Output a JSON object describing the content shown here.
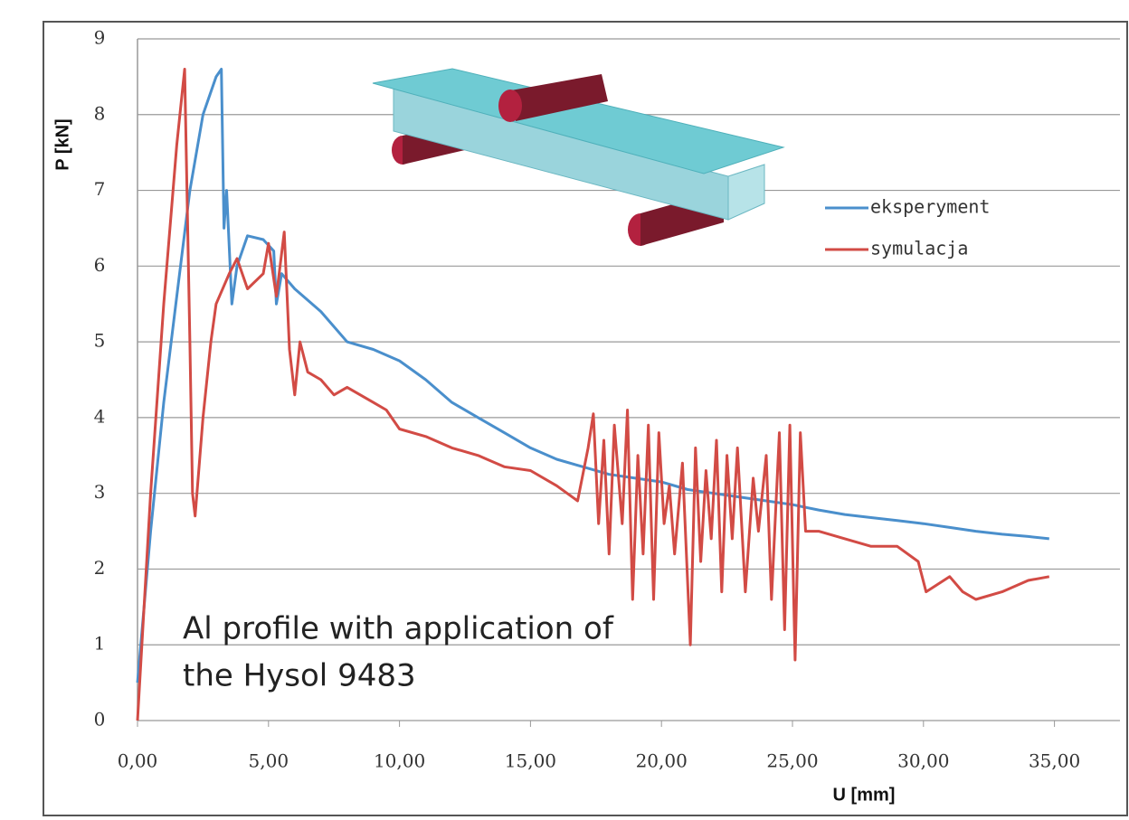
{
  "chart_data": {
    "type": "line",
    "ylabel": "P [kN]",
    "xlabel": "U [mm]",
    "annotation": [
      "Al profile with application of",
      "the Hysol 9483"
    ],
    "xlim": [
      0,
      37.5
    ],
    "ylim": [
      0,
      9
    ],
    "xticks": [
      {
        "value": 0,
        "label": "0,00"
      },
      {
        "value": 5,
        "label": "5,00"
      },
      {
        "value": 10,
        "label": "10,00"
      },
      {
        "value": 15,
        "label": "15,00"
      },
      {
        "value": 20,
        "label": "20,00"
      },
      {
        "value": 25,
        "label": "25,00"
      },
      {
        "value": 30,
        "label": "30,00"
      },
      {
        "value": 35,
        "label": "35,00"
      }
    ],
    "yticks": [
      0,
      1,
      2,
      3,
      4,
      5,
      6,
      7,
      8,
      9
    ],
    "grid": true,
    "legend": "upper right",
    "series": [
      {
        "name": "eksperyment",
        "color": "#4a8fcc",
        "x": [
          0,
          0.5,
          1,
          1.5,
          2,
          2.5,
          3,
          3.2,
          3.3,
          3.4,
          3.6,
          3.8,
          4.2,
          4.8,
          5.2,
          5.3,
          5.5,
          6,
          7,
          8,
          9,
          10,
          11,
          12,
          13,
          14,
          15,
          16,
          17,
          18,
          19,
          20,
          21,
          22,
          23,
          24,
          25,
          26,
          27,
          28,
          29,
          30,
          31,
          32,
          33,
          34,
          34.8
        ],
        "values": [
          0.5,
          2.5,
          4.2,
          5.6,
          7.0,
          8.0,
          8.5,
          8.6,
          6.5,
          7.0,
          5.5,
          6.0,
          6.4,
          6.35,
          6.2,
          5.5,
          5.9,
          5.7,
          5.4,
          5.0,
          4.9,
          4.75,
          4.5,
          4.2,
          4.0,
          3.8,
          3.6,
          3.45,
          3.35,
          3.25,
          3.2,
          3.15,
          3.05,
          3.0,
          2.95,
          2.9,
          2.85,
          2.78,
          2.72,
          2.68,
          2.64,
          2.6,
          2.55,
          2.5,
          2.46,
          2.43,
          2.4
        ]
      },
      {
        "name": "symulacja",
        "color": "#d24b45",
        "x": [
          0,
          0.5,
          1,
          1.5,
          1.8,
          2,
          2.1,
          2.2,
          2.5,
          2.8,
          3,
          3.5,
          3.8,
          4.2,
          4.8,
          5.0,
          5.3,
          5.6,
          5.8,
          6,
          6.2,
          6.5,
          7,
          7.5,
          8,
          9,
          9.5,
          10,
          11,
          12,
          13,
          14,
          15,
          16,
          16.8,
          17.2,
          17.4,
          17.6,
          17.8,
          18,
          18.2,
          18.5,
          18.7,
          18.9,
          19.1,
          19.3,
          19.5,
          19.7,
          19.9,
          20.1,
          20.3,
          20.5,
          20.8,
          21.1,
          21.3,
          21.5,
          21.7,
          21.9,
          22.1,
          22.3,
          22.5,
          22.7,
          22.9,
          23.2,
          23.5,
          23.7,
          24,
          24.2,
          24.5,
          24.7,
          24.9,
          25.1,
          25.3,
          25.5,
          26,
          27,
          28,
          29,
          29.8,
          30.1,
          31,
          31.5,
          32,
          33,
          34,
          34.8
        ],
        "values": [
          0,
          3,
          5.5,
          7.6,
          8.6,
          5,
          3,
          2.7,
          4.0,
          5.0,
          5.5,
          5.9,
          6.1,
          5.7,
          5.9,
          6.3,
          5.6,
          6.45,
          4.9,
          4.3,
          5.0,
          4.6,
          4.5,
          4.3,
          4.4,
          4.2,
          4.1,
          3.85,
          3.75,
          3.6,
          3.5,
          3.35,
          3.3,
          3.1,
          2.9,
          3.6,
          4.05,
          2.6,
          3.7,
          2.2,
          3.9,
          2.6,
          4.1,
          1.6,
          3.5,
          2.2,
          3.9,
          1.6,
          3.8,
          2.6,
          3.1,
          2.2,
          3.4,
          1.0,
          3.6,
          2.1,
          3.3,
          2.4,
          3.7,
          1.7,
          3.5,
          2.4,
          3.6,
          1.7,
          3.2,
          2.5,
          3.5,
          1.6,
          3.8,
          1.2,
          3.9,
          0.8,
          3.8,
          2.5,
          2.5,
          2.4,
          2.3,
          2.3,
          2.1,
          1.7,
          1.9,
          1.7,
          1.6,
          1.7,
          1.85,
          1.9
        ]
      }
    ]
  }
}
